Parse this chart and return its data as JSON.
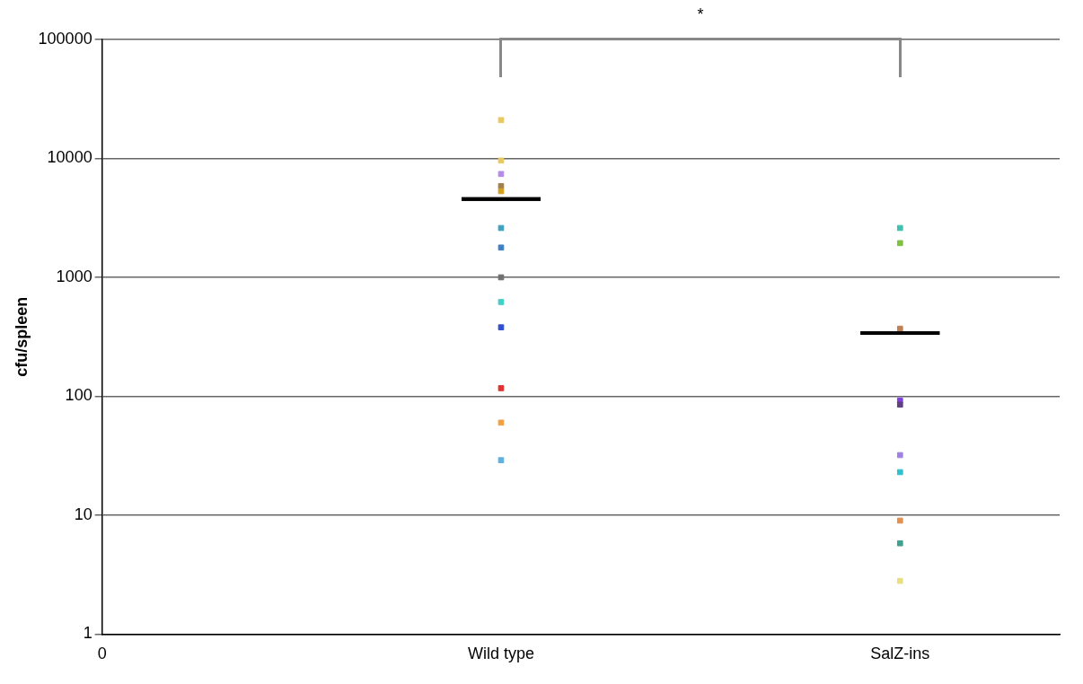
{
  "chart_data": {
    "type": "scatter",
    "ylabel": "cfu/spleen",
    "log": "y",
    "grid": "y",
    "marker": "square",
    "legend": false,
    "categories": [
      "0",
      "Wild type",
      "SalZ-ins"
    ],
    "ylim": [
      1,
      100000
    ],
    "yticks": [
      1,
      10,
      100,
      1000,
      10000,
      100000
    ],
    "annotations": [
      "*"
    ],
    "series": [
      {
        "x": [
          "Wild type",
          "Wild type",
          "Wild type",
          "Wild type",
          "Wild type",
          "Wild type",
          "Wild type",
          "Wild type",
          "Wild type",
          "Wild type",
          "Wild type",
          "Wild type",
          "Wild type"
        ],
        "values": [
          21000,
          9600,
          7400,
          5850,
          5300,
          2600,
          1780,
          1000,
          620,
          380,
          117,
          60,
          29
        ],
        "colors": [
          "#e8c860",
          "#e8c860",
          "#b48ce8",
          "#a08050",
          "#d4a020",
          "#40a0c0",
          "#4080c0",
          "#707070",
          "#40d0c8",
          "#3050d0",
          "#e03030",
          "#f0a040",
          "#60b0e0"
        ]
      },
      {
        "x": [
          "SalZ-ins",
          "SalZ-ins",
          "SalZ-ins",
          "SalZ-ins",
          "SalZ-ins",
          "SalZ-ins",
          "SalZ-ins",
          "SalZ-ins",
          "SalZ-ins",
          "SalZ-ins"
        ],
        "values": [
          2600,
          1940,
          370,
          92,
          32,
          23,
          9,
          5.8,
          2.8,
          85
        ],
        "colors": [
          "#40c0b0",
          "#80c040",
          "#c08050",
          "#8040e0",
          "#a080e0",
          "#30c0d0",
          "#e09050",
          "#40a090",
          "#e8e080",
          "#604080"
        ]
      },
      {
        "type": "box",
        "color": "#000000",
        "boxes": [
          null,
          {
            "low": 4560,
            "q1": 4560,
            "median": 4560,
            "q3": 4560,
            "high": 4560
          },
          {
            "low": 340,
            "q1": 340,
            "median": 340,
            "q3": 340,
            "high": 340
          }
        ]
      }
    ]
  }
}
